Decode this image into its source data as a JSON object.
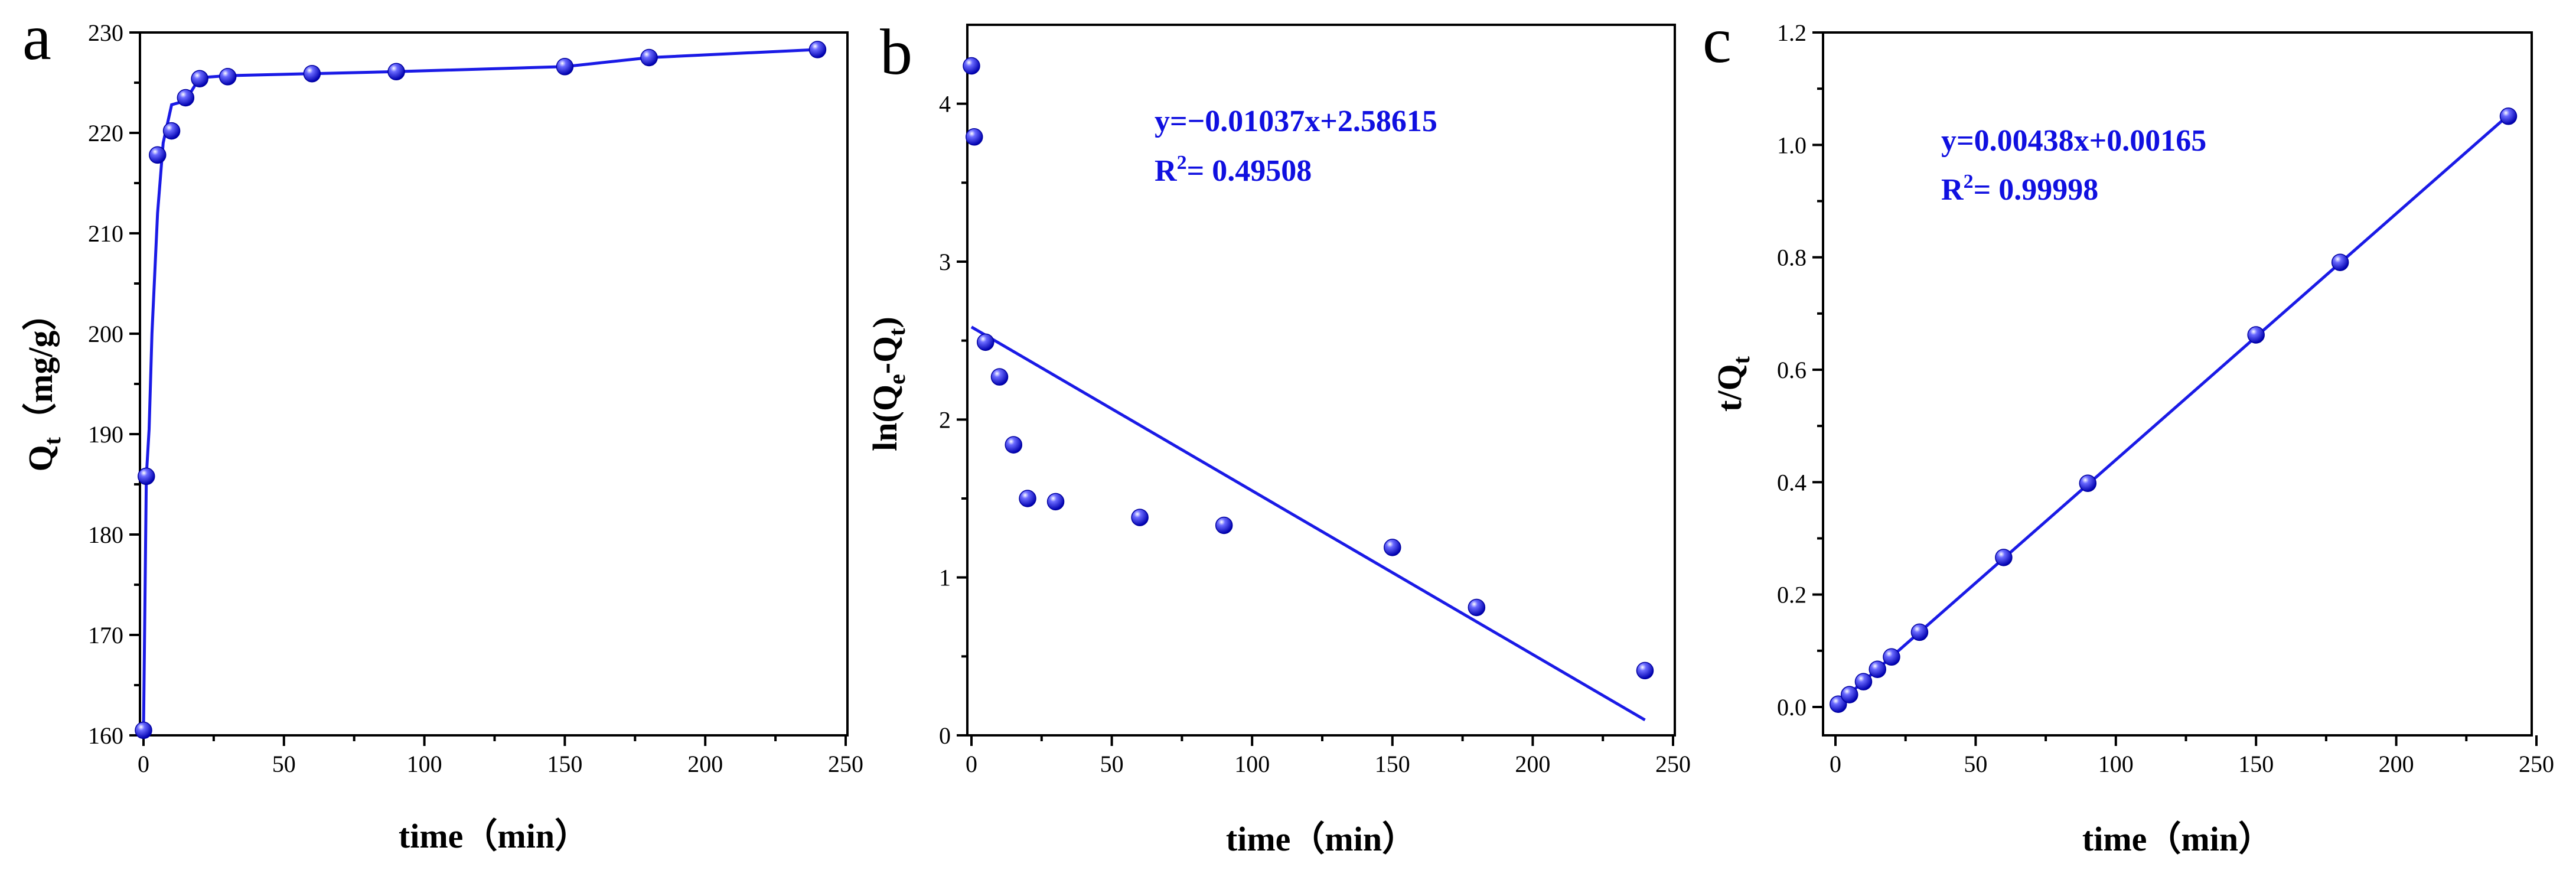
{
  "chart_data": [
    {
      "panel": "a",
      "type": "line",
      "xlabel": "time（min）",
      "ylabel": "Q",
      "ylabel_sub": "t",
      "ylabel_rest": "（mg/g）",
      "xlim": [
        0,
        250
      ],
      "ylim": [
        160,
        230
      ],
      "xticks": [
        0,
        50,
        100,
        150,
        200,
        250
      ],
      "yticks": [
        160,
        170,
        180,
        190,
        200,
        210,
        220,
        230
      ],
      "series": [
        {
          "name": "data",
          "style": "markers",
          "x": [
            0,
            1,
            5,
            10,
            15,
            20,
            30,
            60,
            90,
            150,
            180,
            240
          ],
          "y": [
            160.5,
            185.8,
            217.8,
            220.2,
            223.5,
            225.4,
            225.6,
            225.9,
            226.1,
            226.6,
            227.5,
            228.3
          ]
        },
        {
          "name": "fit",
          "style": "line",
          "x": [
            0,
            1,
            2,
            3,
            5,
            7,
            10,
            15,
            20,
            30,
            60,
            90,
            150,
            180,
            240
          ],
          "y": [
            160.5,
            185.8,
            190.5,
            200,
            212,
            219,
            222.8,
            223.2,
            225.5,
            225.7,
            225.9,
            226.1,
            226.6,
            227.5,
            228.3
          ]
        }
      ],
      "marker_color": "#1a1ae6"
    },
    {
      "panel": "b",
      "type": "scatter",
      "xlabel": "time（min）",
      "ylabel": "ln(Q",
      "ylabel_sub1": "e",
      "ylabel_mid": "-Q",
      "ylabel_sub2": "t",
      "ylabel_end": ")",
      "xlim": [
        0,
        250
      ],
      "ylim": [
        0,
        4.5
      ],
      "xticks": [
        0,
        50,
        100,
        150,
        200,
        250
      ],
      "yticks": [
        0,
        1,
        2,
        3,
        4
      ],
      "series": [
        {
          "name": "data",
          "style": "markers",
          "x": [
            0,
            1,
            5,
            10,
            15,
            20,
            30,
            60,
            90,
            150,
            180,
            240
          ],
          "y": [
            4.24,
            3.79,
            2.49,
            2.27,
            1.84,
            1.5,
            1.48,
            1.38,
            1.33,
            1.19,
            0.81,
            0.41
          ]
        },
        {
          "name": "fit",
          "style": "line",
          "x": [
            0,
            240
          ],
          "y": [
            2.58615,
            0.0973
          ]
        }
      ],
      "equation": "y=−0.01037x+2.58615",
      "r2_label": "R",
      "r2_sup": "2",
      "r2_value": "= 0.49508",
      "marker_color": "#1a1ae6"
    },
    {
      "panel": "c",
      "type": "scatter",
      "xlabel": "time（min）",
      "ylabel": "t/Q",
      "ylabel_sub": "t",
      "xlim": [
        0,
        250
      ],
      "ylim": [
        0,
        1.2
      ],
      "xticks": [
        0,
        50,
        100,
        150,
        200,
        250
      ],
      "yticks": [
        0.0,
        0.2,
        0.4,
        0.6,
        0.8,
        1.0,
        1.2
      ],
      "ytick_labels": [
        "0.0",
        "0.2",
        "0.4",
        "0.6",
        "0.8",
        "1.0",
        "1.2"
      ],
      "series": [
        {
          "name": "data",
          "style": "markers",
          "x": [
            1,
            5,
            10,
            15,
            20,
            30,
            60,
            90,
            150,
            180,
            240
          ],
          "y": [
            0.005,
            0.022,
            0.045,
            0.067,
            0.089,
            0.133,
            0.266,
            0.398,
            0.662,
            0.791,
            1.051
          ]
        },
        {
          "name": "fit",
          "style": "line",
          "x": [
            0,
            240
          ],
          "y": [
            0.00165,
            1.05285
          ]
        }
      ],
      "equation": "y=0.00438x+0.00165",
      "r2_label": "R",
      "r2_sup": "2",
      "r2_value": "= 0.99998",
      "marker_color": "#1a1ae6"
    }
  ]
}
